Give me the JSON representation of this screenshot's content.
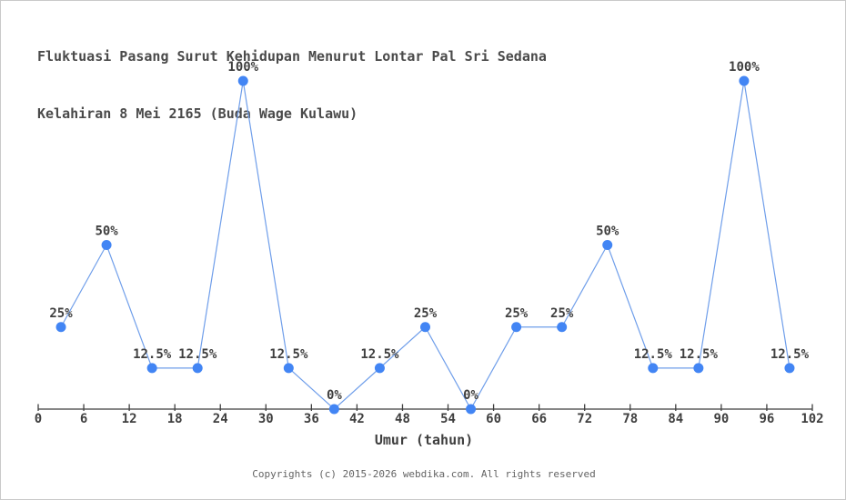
{
  "title": {
    "line1": "Fluktuasi Pasang Surut Kehidupan Menurut Lontar Pal Sri Sedana",
    "line2": "Kelahiran 8 Mei 2165 (Buda Wage Kulawu)"
  },
  "footer": {
    "text": "Copyrights (c) 2015-2026 webdika.com. All rights reserved"
  },
  "chart_data": {
    "type": "line",
    "title": "Fluktuasi Pasang Surut Kehidupan Menurut Lontar Pal Sri Sedana Kelahiran 8 Mei 2165 (Buda Wage Kulawu)",
    "x": [
      3,
      9,
      15,
      21,
      27,
      33,
      39,
      45,
      51,
      57,
      63,
      69,
      75,
      81,
      87,
      93,
      99
    ],
    "values": [
      25,
      50,
      12.5,
      12.5,
      100,
      12.5,
      0,
      12.5,
      25,
      0,
      25,
      25,
      50,
      12.5,
      12.5,
      100,
      12.5
    ],
    "point_labels": [
      "25%",
      "50%",
      "12.5%",
      "12.5%",
      "100%",
      "12.5%",
      "0%",
      "12.5%",
      "25%",
      "0%",
      "25%",
      "25%",
      "50%",
      "12.5%",
      "12.5%",
      "100%",
      "12.5%"
    ],
    "x_ticks": [
      0,
      6,
      12,
      18,
      24,
      30,
      36,
      42,
      48,
      54,
      60,
      66,
      72,
      78,
      84,
      90,
      96,
      102
    ],
    "xlabel": "Umur (tahun)",
    "ylabel": "",
    "xlim": [
      0,
      102
    ],
    "ylim": [
      0,
      110
    ],
    "grid": false,
    "legend": "none",
    "line_color": "#6f9eea",
    "marker_color": "#4285f4",
    "axis_color": "#3f3f3f",
    "label_color": "#3f3f3f"
  }
}
